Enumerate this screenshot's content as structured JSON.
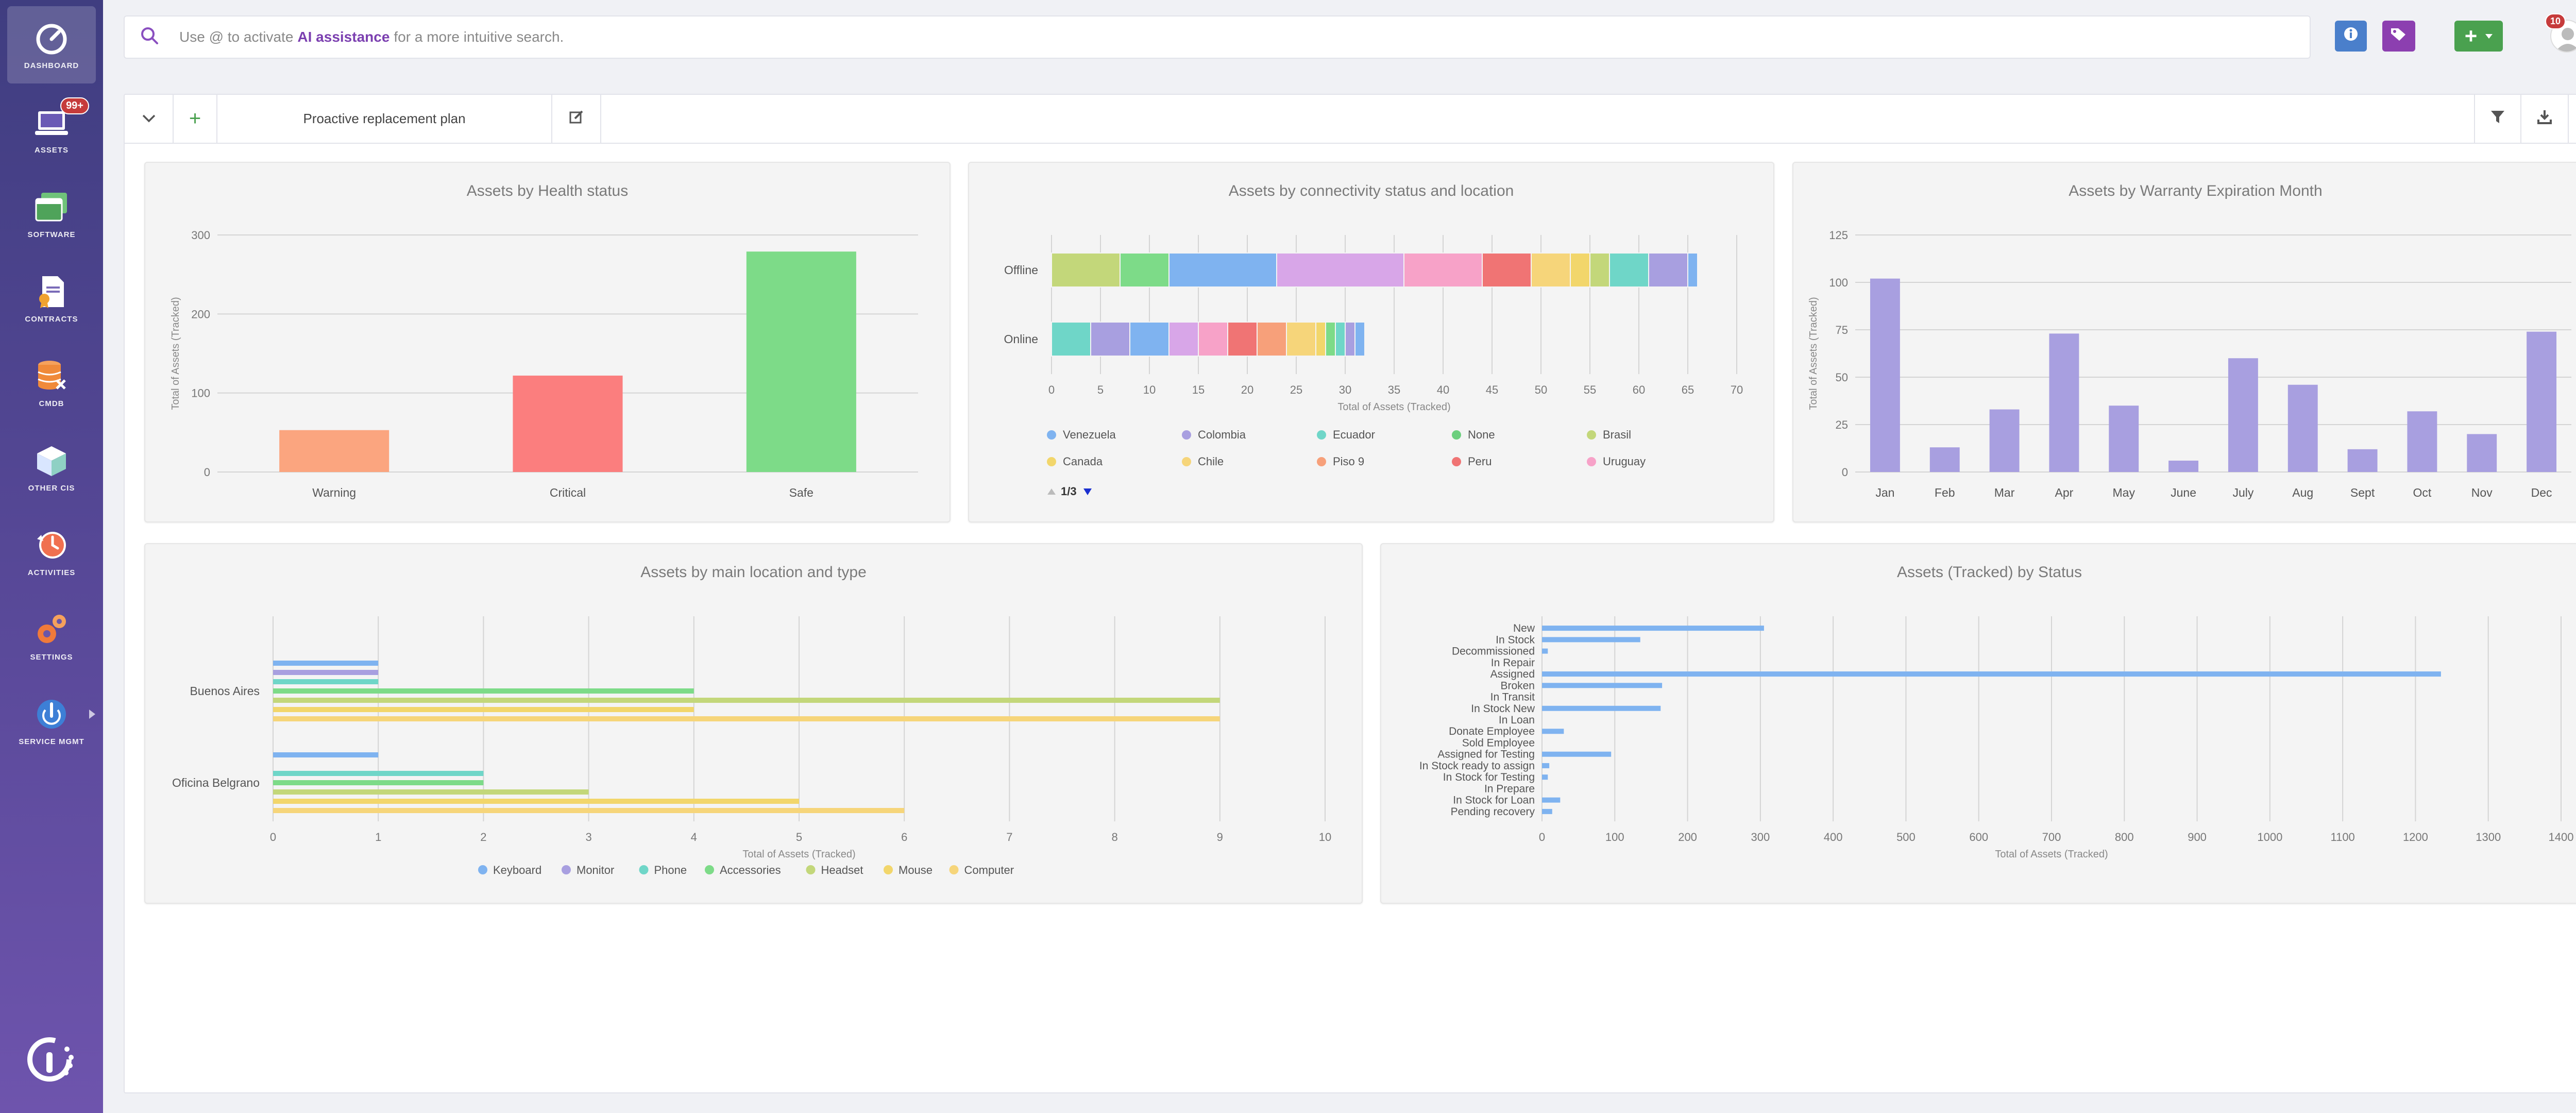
{
  "sidebar": {
    "items": [
      {
        "label": "DASHBOARD",
        "icon": "dashboard-icon"
      },
      {
        "label": "ASSETS",
        "icon": "laptop-icon",
        "badge": "99+"
      },
      {
        "label": "SOFTWARE",
        "icon": "software-window-icon"
      },
      {
        "label": "CONTRACTS",
        "icon": "contract-icon"
      },
      {
        "label": "CMDB",
        "icon": "database-icon"
      },
      {
        "label": "OTHER CIS",
        "icon": "box-icon"
      },
      {
        "label": "ACTIVITIES",
        "icon": "clock-icon"
      },
      {
        "label": "SETTINGS",
        "icon": "gears-icon"
      },
      {
        "label": "SERVICE MGMT",
        "icon": "service-icon"
      }
    ]
  },
  "search": {
    "before": "Use @ to activate",
    "highlight": "AI assistance",
    "after": "for a more intuitive search."
  },
  "topbar": {
    "notifications_count": "10",
    "add_label": "+"
  },
  "tabs": {
    "active_label": "Proactive replacement plan",
    "add_label": "+"
  },
  "colors": {
    "Venezuela": "#7fb3f0",
    "Colombia": "#a89fe0",
    "Ecuador": "#6fd6c8",
    "None": "#6ccf7e",
    "Brasil": "#c3d77a",
    "Canada": "#f2d66b",
    "Chile": "#f6d57a",
    "Piso 9": "#f7a07a",
    "Peru": "#f07474",
    "Uruguay": "#f7a2c8",
    "extra1": "#d8a6e8"
  },
  "charts": [
    {
      "title": "Assets by Health status",
      "chart_data": {
        "type": "bar",
        "categories": [
          "Warning",
          "Critical",
          "Safe"
        ],
        "values": [
          53,
          122,
          279
        ],
        "colors": [
          "#fba57f",
          "#fb7e7e",
          "#7ddb88"
        ],
        "ylabel": "Total of Assets (Tracked)",
        "ylim": [
          0,
          300
        ],
        "yticks": [
          0,
          100,
          200,
          300
        ]
      }
    },
    {
      "title": "Assets by connectivity status and location",
      "chart_data": {
        "type": "bar",
        "orientation": "horizontal",
        "stacked": true,
        "categories": [
          "Offline",
          "Online"
        ],
        "xlabel": "Total of Assets (Tracked)",
        "xlim": [
          0,
          70
        ],
        "xticks": [
          0,
          5,
          10,
          15,
          20,
          25,
          30,
          35,
          40,
          45,
          50,
          55,
          60,
          65,
          70
        ],
        "segments": [
          {
            "category": "Offline",
            "values": [
              7,
              5,
              11,
              13,
              8,
              5,
              4,
              2,
              2,
              4,
              4,
              1
            ],
            "colors": [
              "#c3d77a",
              "#7ddb88",
              "#7fb3f0",
              "#d8a6e8",
              "#f7a2c8",
              "#f07474",
              "#f6d57a",
              "#f2d66b",
              "#c3d77a",
              "#6fd6c8",
              "#a89fe0",
              "#7fb3f0"
            ]
          },
          {
            "category": "Online",
            "values": [
              4,
              4,
              4,
              3,
              3,
              3,
              3,
              3,
              1,
              1,
              1,
              1,
              1
            ],
            "colors": [
              "#6fd6c8",
              "#a89fe0",
              "#7fb3f0",
              "#d8a6e8",
              "#f7a2c8",
              "#f07474",
              "#f7a07a",
              "#f6d57a",
              "#f2d66b",
              "#7ddb88",
              "#6fd6c8",
              "#a89fe0",
              "#7fb3f0"
            ]
          }
        ],
        "legend": [
          "Venezuela",
          "Colombia",
          "Ecuador",
          "None",
          "Brasil",
          "Canada",
          "Chile",
          "Piso 9",
          "Peru",
          "Uruguay"
        ],
        "legend_page": "1/3"
      }
    },
    {
      "title": "Assets by Warranty Expiration Month",
      "chart_data": {
        "type": "bar",
        "categories": [
          "Jan",
          "Feb",
          "Mar",
          "Apr",
          "May",
          "June",
          "July",
          "Aug",
          "Sept",
          "Oct",
          "Nov",
          "Dec"
        ],
        "values": [
          102,
          13,
          33,
          73,
          35,
          6,
          60,
          46,
          12,
          32,
          20,
          74
        ],
        "color": "#a89fe0",
        "ylabel": "Total of Assets (Tracked)",
        "ylim": [
          0,
          125
        ],
        "yticks": [
          0,
          25,
          50,
          75,
          100,
          125
        ]
      }
    },
    {
      "title": "Assets by main location and type",
      "chart_data": {
        "type": "bar",
        "orientation": "horizontal",
        "categories": [
          "Buenos Aires",
          "Oficina Belgrano"
        ],
        "series": [
          {
            "name": "Keyboard",
            "color": "#7fb3f0",
            "values": [
              1,
              1
            ]
          },
          {
            "name": "Monitor",
            "color": "#a89fe0",
            "values": [
              1,
              0
            ]
          },
          {
            "name": "Phone",
            "color": "#6fd6c8",
            "values": [
              1,
              2
            ]
          },
          {
            "name": "Accessories",
            "color": "#7ddb88",
            "values": [
              4,
              2
            ]
          },
          {
            "name": "Headset",
            "color": "#c3d77a",
            "values": [
              9,
              3
            ]
          },
          {
            "name": "Mouse",
            "color": "#f2d66b",
            "values": [
              4,
              5
            ]
          },
          {
            "name": "Computer",
            "color": "#f6d57a",
            "values": [
              9,
              6
            ]
          }
        ],
        "xlabel": "Total of Assets (Tracked)",
        "xlim": [
          0,
          10
        ],
        "xticks": [
          0,
          1,
          2,
          3,
          4,
          5,
          6,
          7,
          8,
          9,
          10
        ]
      }
    },
    {
      "title": "Assets (Tracked) by Status",
      "chart_data": {
        "type": "bar",
        "orientation": "horizontal",
        "categories": [
          "New",
          "In Stock",
          "Decommissioned",
          "In Repair",
          "Assigned",
          "Broken",
          "In Transit",
          "In Stock New",
          "In Loan",
          "Donate Employee",
          "Sold Employee",
          "Assigned for Testing",
          "In Stock ready to assign",
          "In Stock for Testing",
          "In Prepare",
          "In Stock for Loan",
          "Pending recovery"
        ],
        "values": [
          305,
          135,
          8,
          0,
          1235,
          165,
          0,
          163,
          0,
          30,
          0,
          95,
          10,
          8,
          0,
          25,
          14
        ],
        "color": "#7fb3f0",
        "xlabel": "Total of Assets (Tracked)",
        "xlim": [
          0,
          1400
        ],
        "xticks": [
          0,
          100,
          200,
          300,
          400,
          500,
          600,
          700,
          800,
          900,
          1000,
          1100,
          1200,
          1300,
          1400
        ]
      }
    }
  ]
}
